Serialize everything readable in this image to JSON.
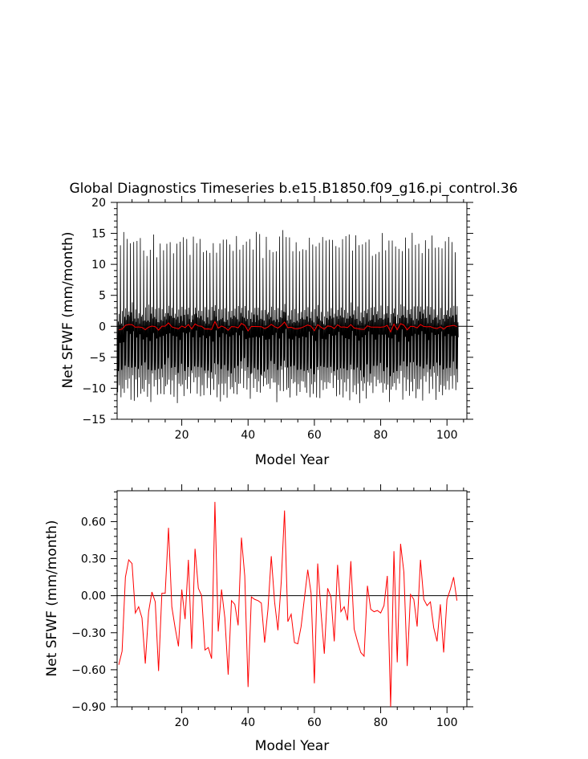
{
  "figure_title": "Global Diagnostics Timeseries b.e15.B1850.f09_g16.pi_control.36",
  "chart_data": [
    {
      "type": "line",
      "title": "Global Diagnostics Timeseries b.e15.B1850.f09_g16.pi_control.36",
      "xlabel": "Model Year",
      "ylabel": "Net SFWF (mm/month)",
      "xlim": [
        0.5,
        106
      ],
      "ylim": [
        -15,
        20
      ],
      "x_ticks": [
        20,
        40,
        60,
        80,
        100
      ],
      "x_tick_labels": [
        "20",
        "40",
        "60",
        "80",
        "100"
      ],
      "y_ticks": [
        -15,
        -10,
        -5,
        0,
        5,
        10,
        15,
        20
      ],
      "y_tick_labels": [
        "−15",
        "−10",
        "−5",
        "0",
        "5",
        "10",
        "15",
        "20"
      ],
      "zero_line": true,
      "grid": false,
      "series": [
        {
          "style": "monthly",
          "color": "#000000",
          "x_start": 0.5,
          "x_step": 0.083333,
          "annual_cycle": [
            13.5,
            2.5,
            -10.5,
            -4.5,
            1.5,
            -6.5,
            -3.5,
            2.8,
            -8.5,
            -2.5,
            1.0,
            -1.5
          ]
        },
        {
          "style": "annual",
          "color": "#ff0000",
          "x_start": 1,
          "x_step": 1,
          "values_ref": "annual_mean"
        }
      ]
    },
    {
      "type": "line",
      "title": "",
      "xlabel": "Model Year",
      "ylabel": "Net SFWF (mm/month)",
      "xlim": [
        0.5,
        106
      ],
      "ylim": [
        -0.9,
        0.85
      ],
      "x_ticks": [
        20,
        40,
        60,
        80,
        100
      ],
      "x_tick_labels": [
        "20",
        "40",
        "60",
        "80",
        "100"
      ],
      "y_ticks": [
        -0.9,
        -0.6,
        -0.3,
        0,
        0.3,
        0.6
      ],
      "y_tick_labels": [
        "−0.90",
        "−0.60",
        "−0.30",
        "0.00",
        "0.30",
        "0.60"
      ],
      "zero_line": true,
      "grid": false,
      "series": [
        {
          "style": "annual",
          "color": "#ff0000",
          "x_start": 1,
          "x_step": 1,
          "values_ref": "annual_mean"
        }
      ]
    }
  ],
  "annual_mean": [
    -0.56,
    -0.45,
    0.15,
    0.29,
    0.26,
    -0.14,
    -0.09,
    -0.18,
    -0.55,
    -0.13,
    0.03,
    -0.05,
    -0.61,
    0.02,
    0.02,
    0.55,
    -0.09,
    -0.26,
    -0.41,
    0.05,
    -0.19,
    0.29,
    -0.43,
    0.38,
    0.06,
    0.0,
    -0.44,
    -0.42,
    -0.51,
    0.76,
    -0.29,
    0.05,
    -0.18,
    -0.64,
    -0.04,
    -0.07,
    -0.24,
    0.47,
    0.16,
    -0.74,
    -0.01,
    -0.03,
    -0.04,
    -0.06,
    -0.38,
    -0.11,
    0.32,
    -0.05,
    -0.28,
    0.11,
    0.69,
    -0.21,
    -0.15,
    -0.38,
    -0.39,
    -0.25,
    -0.02,
    0.21,
    0.02,
    -0.71,
    0.26,
    -0.13,
    -0.47,
    0.06,
    -0.01,
    -0.37,
    0.25,
    -0.13,
    -0.09,
    -0.2,
    0.28,
    -0.27,
    -0.37,
    -0.46,
    -0.49,
    0.08,
    -0.11,
    -0.13,
    -0.12,
    -0.14,
    -0.08,
    0.16,
    -0.9,
    0.36,
    -0.54,
    0.42,
    0.19,
    -0.57,
    0.01,
    -0.03,
    -0.25,
    0.29,
    -0.03,
    -0.08,
    -0.05,
    -0.26,
    -0.37,
    -0.07,
    -0.46,
    -0.03,
    0.05,
    0.15,
    -0.04
  ]
}
